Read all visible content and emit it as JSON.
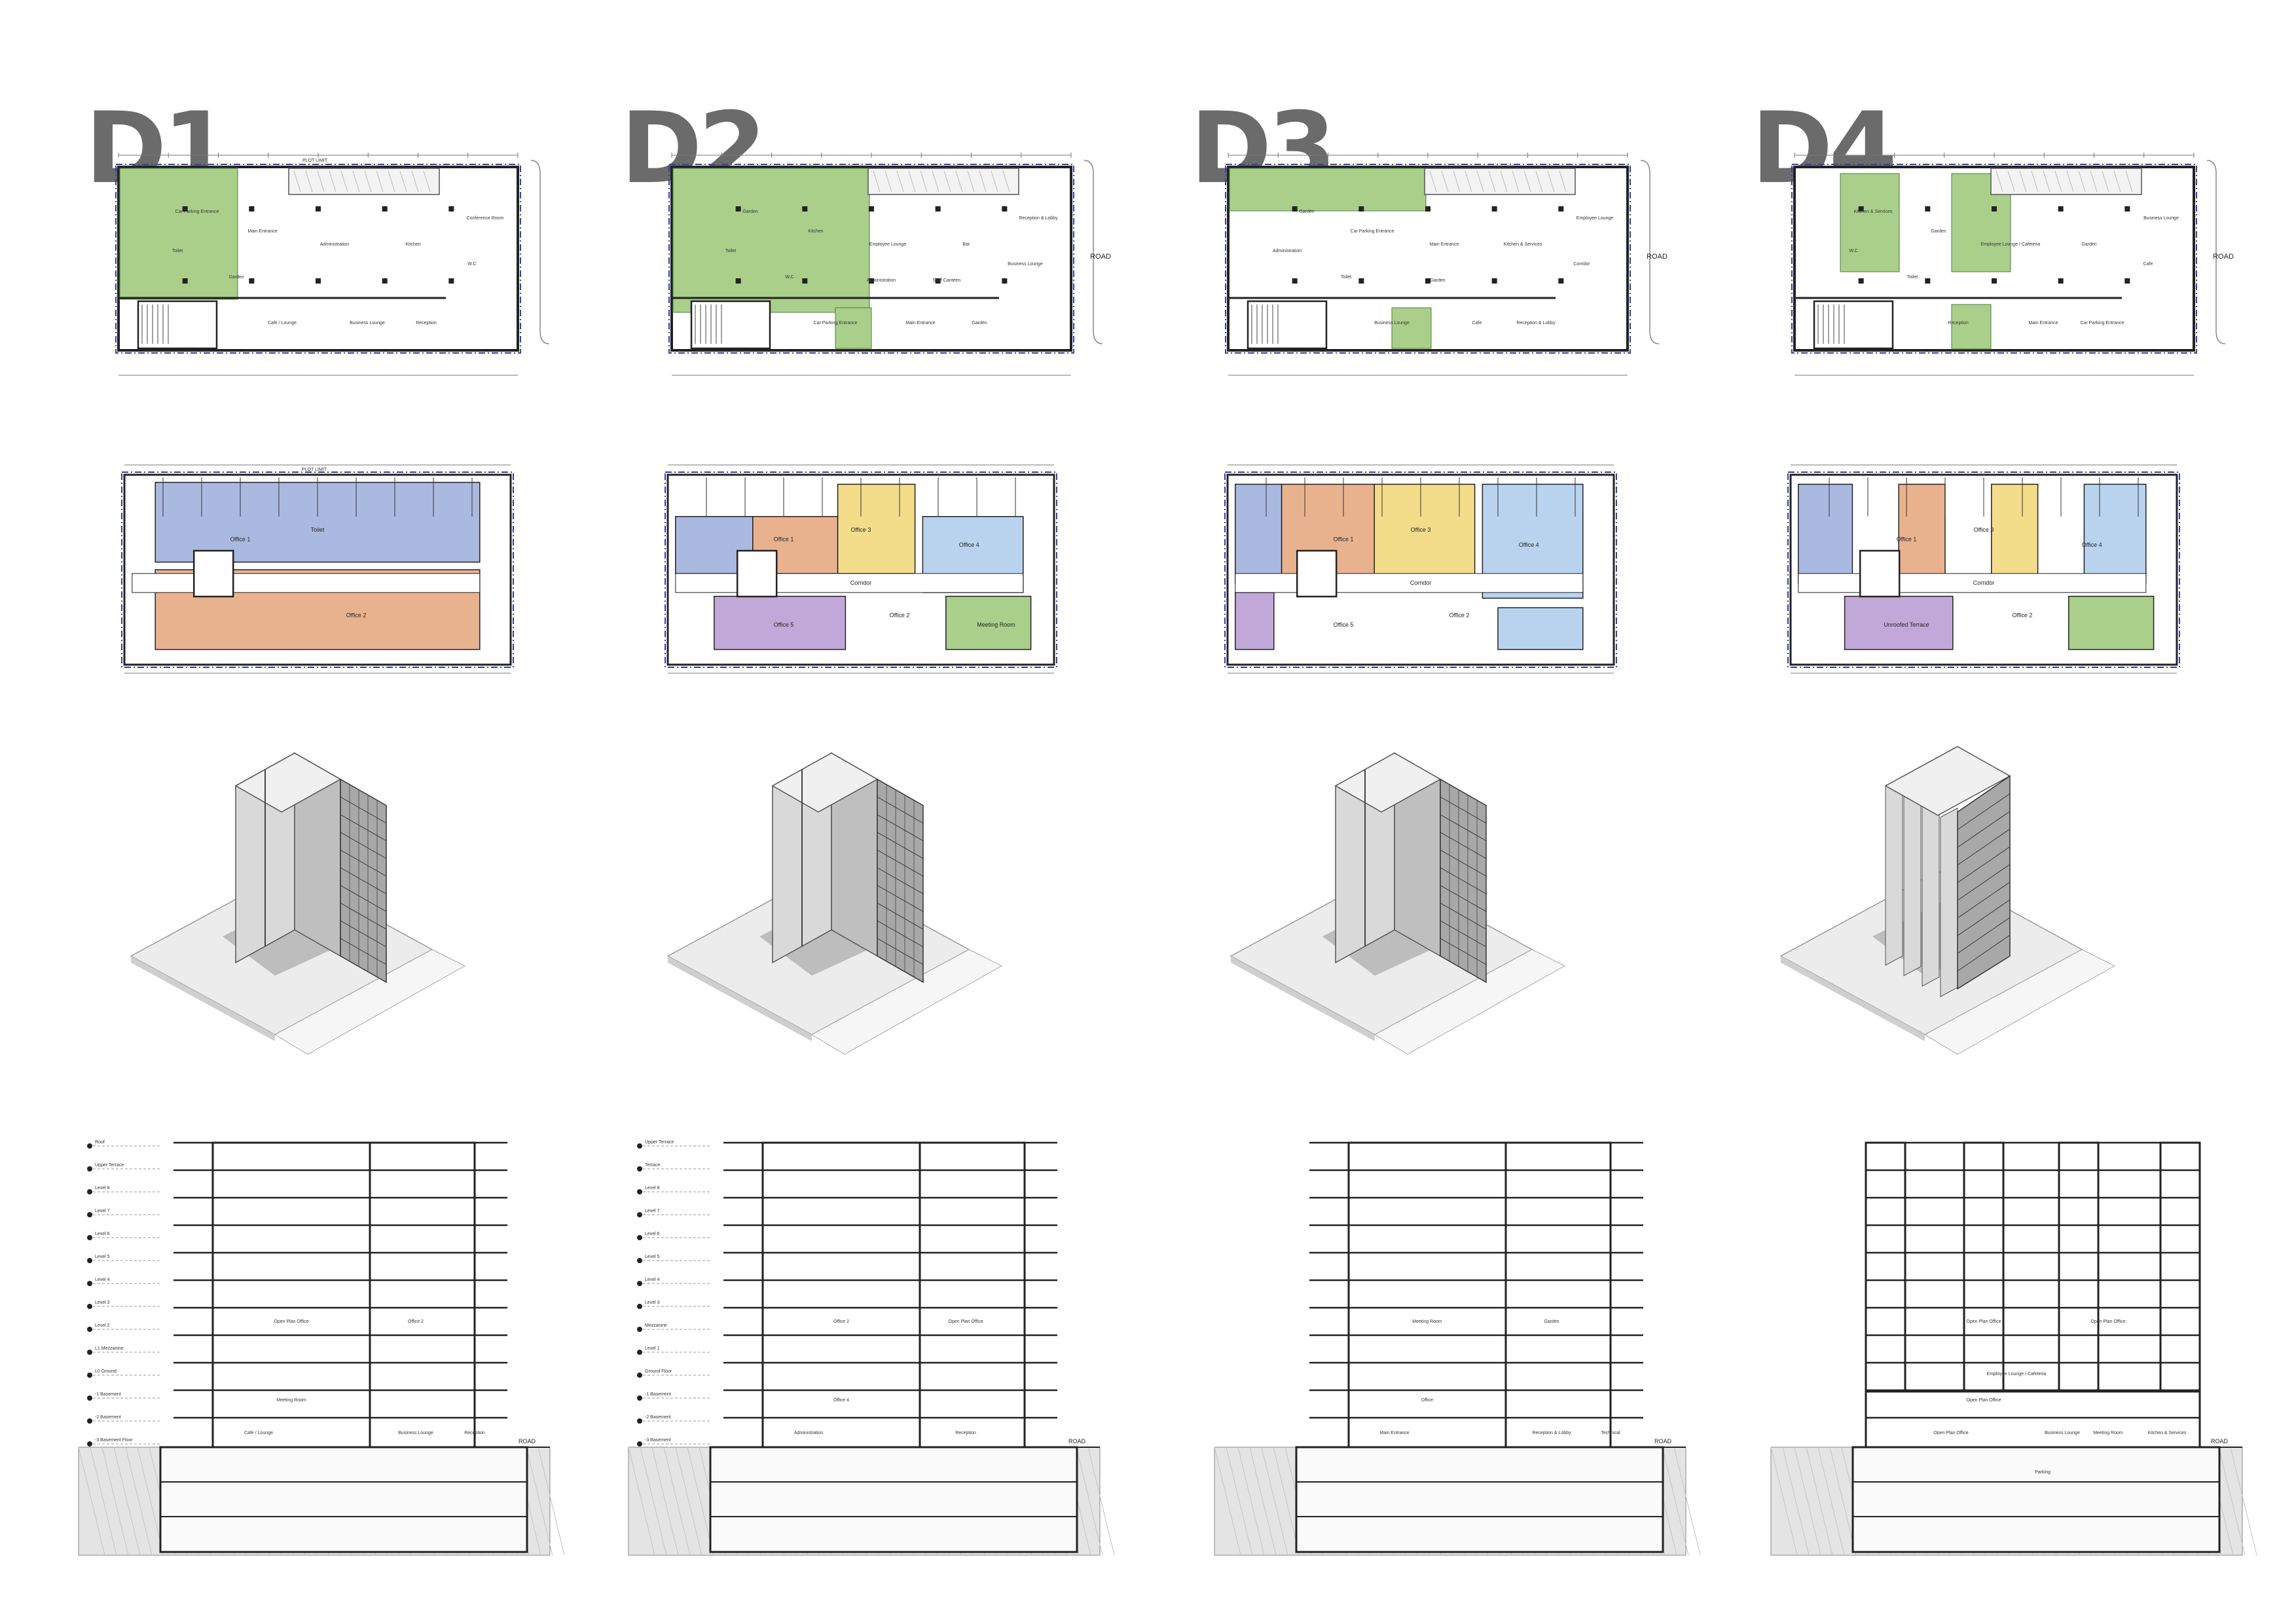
{
  "designs": [
    {
      "id": "D1",
      "ground_rooms": [
        "Car Parking Entrance",
        "Main Entrance",
        "Administration",
        "Kitchen",
        "W.C",
        "Conference Room",
        "Cafe / Lounge",
        "Business Lounge",
        "Reception",
        "Toilet",
        "Garden"
      ],
      "typical_rooms": [
        "Office 1",
        "Office 2",
        "Toilet"
      ],
      "plot_label": "PLOT LIMIT",
      "section_rooms": [
        "Open Plan Office",
        "Office 2",
        "Meeting Room",
        "Cafe / Lounge",
        "Business Lounge",
        "Reception"
      ],
      "road_label": "ROAD",
      "section_levels": [
        "Roof",
        "Upper Terrace",
        "Level 8",
        "Level 7",
        "Level 6",
        "Level 5",
        "Level 4",
        "Level 3",
        "Level 2",
        "L1 Mezzanine",
        "L0 Ground",
        "-1 Basement",
        "-2 Basement",
        "-3 Basement Floor"
      ]
    },
    {
      "id": "D2",
      "ground_rooms": [
        "Garden",
        "Kitchen",
        "Employee Lounge",
        "Bar",
        "Business Lounge",
        "Reception & Lobby",
        "Car Parking Entrance",
        "Main Entrance",
        "Garden",
        "Toilet",
        "W.C",
        "Administration",
        "Staff Canteen"
      ],
      "typical_rooms": [
        "Office 1",
        "Office 2",
        "Office 3",
        "Office 4",
        "Office 5",
        "Corridor",
        "Meeting Room"
      ],
      "road_label": "ROAD",
      "section_rooms": [
        "Office 2",
        "Open Plan Office",
        "Office 4",
        "Administration",
        "Reception"
      ],
      "section_levels": [
        "Upper Terrace",
        "Terrace",
        "Level 8",
        "Level 7",
        "Level 6",
        "Level 5",
        "Level 4",
        "Level 3",
        "Mezzanine",
        "Level 1",
        "Ground Floor",
        "-1 Basement",
        "-2 Basement",
        "-3 Basement"
      ]
    },
    {
      "id": "D3",
      "ground_rooms": [
        "Garden",
        "Car Parking Entrance",
        "Main Entrance",
        "Kitchen & Services",
        "Corridor",
        "Employee Lounge",
        "Business Lounge",
        "Cafe",
        "Reception & Lobby",
        "Administration",
        "Toilet",
        "Garden"
      ],
      "typical_rooms": [
        "Office 1",
        "Office 2",
        "Office 3",
        "Office 4",
        "Office 5",
        "Corridor"
      ],
      "road_label": "ROAD",
      "section_rooms": [
        "Meeting Room",
        "Garden",
        "Office",
        "Main Entrance",
        "Reception & Lobby",
        "Technical"
      ],
      "section_levels": []
    },
    {
      "id": "D4",
      "ground_rooms": [
        "Kitchen & Services",
        "Garden",
        "Employee Lounge / Cafeteria",
        "Garden",
        "Cafe",
        "Business Lounge",
        "Reception",
        "Main Entrance",
        "Car Parking Entrance",
        "W.C",
        "Toilet"
      ],
      "typical_rooms": [
        "Office 1",
        "Office 2",
        "Office 3",
        "Office 4",
        "Unroofed Terrace",
        "Corridor"
      ],
      "road_label": "ROAD",
      "section_rooms": [
        "Open Plan Office",
        "Open Plan Office",
        "Open Plan Office",
        "Open Plan Office",
        "Meeting Room",
        "Kitchen & Services",
        "Employee Lounge / Cafeteria",
        "Business Lounge",
        "Parking"
      ],
      "section_levels": []
    }
  ],
  "colors": {
    "office_blue": "#aab9e0",
    "office_orange": "#e9b28f",
    "office_yellow": "#f3dd8a",
    "office_purple": "#c2a8d9",
    "office_lightblue": "#b9d3ef",
    "garden_green": "#a9cf8a",
    "title_grey": "#6b6b6b",
    "plot_limit": "#3640a8"
  }
}
